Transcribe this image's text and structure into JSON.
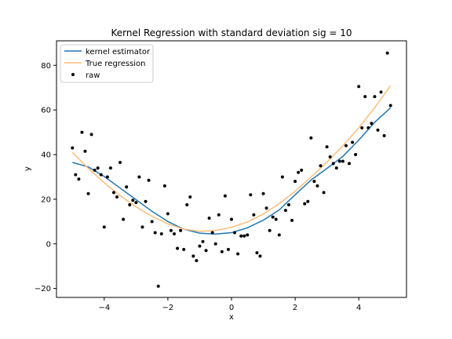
{
  "chart_data": {
    "type": "scatter",
    "title": "Kernel Regression with standard deviation sig = 10",
    "xlabel": "x",
    "ylabel": "y",
    "xlim": [
      -5.5,
      5.5
    ],
    "ylim": [
      -24,
      91
    ],
    "xticks": [
      -4,
      -2,
      0,
      2,
      4
    ],
    "yticks": [
      -20,
      0,
      20,
      40,
      60,
      80
    ],
    "grid": false,
    "legend_position": "top-left",
    "series": [
      {
        "name": "kernel estimator",
        "kind": "line",
        "color": "#1f77b4",
        "x": [
          -5.0,
          -4.5,
          -4.0,
          -3.5,
          -3.0,
          -2.5,
          -2.0,
          -1.5,
          -1.0,
          -0.5,
          0.0,
          0.5,
          1.0,
          1.5,
          2.0,
          2.5,
          3.0,
          3.5,
          4.0,
          4.5,
          5.0
        ],
        "y": [
          36.5,
          34.5,
          30.2,
          25.0,
          19.8,
          14.6,
          10.0,
          6.6,
          4.8,
          4.4,
          5.0,
          7.2,
          10.6,
          15.2,
          22.0,
          28.6,
          33.8,
          39.2,
          46.5,
          54.5,
          61.0
        ]
      },
      {
        "name": "True regression",
        "kind": "line",
        "color": "#ffbb78",
        "x": [
          -5.0,
          -4.5,
          -4.0,
          -3.5,
          -3.0,
          -2.5,
          -2.0,
          -1.5,
          -1.0,
          -0.5,
          0.0,
          0.5,
          1.0,
          1.5,
          2.0,
          2.5,
          3.0,
          3.5,
          4.0,
          4.5,
          5.0
        ],
        "y": [
          41.0,
          33.8,
          27.4,
          21.6,
          16.6,
          12.4,
          9.0,
          6.6,
          5.6,
          6.0,
          7.4,
          9.8,
          13.4,
          18.0,
          23.6,
          30.0,
          36.6,
          44.0,
          52.0,
          61.0,
          71.0
        ]
      },
      {
        "name": "raw",
        "kind": "scatter",
        "color": "#000000",
        "x": [
          -5.0,
          -4.9,
          -4.8,
          -4.7,
          -4.6,
          -4.5,
          -4.4,
          -4.3,
          -4.2,
          -4.1,
          -4.0,
          -3.9,
          -3.8,
          -3.7,
          -3.6,
          -3.5,
          -3.4,
          -3.3,
          -3.2,
          -3.1,
          -3.0,
          -2.9,
          -2.8,
          -2.7,
          -2.6,
          -2.5,
          -2.4,
          -2.3,
          -2.2,
          -2.1,
          -2.0,
          -1.9,
          -1.8,
          -1.7,
          -1.6,
          -1.5,
          -1.4,
          -1.3,
          -1.2,
          -1.1,
          -1.0,
          -0.9,
          -0.8,
          -0.7,
          -0.6,
          -0.5,
          -0.4,
          -0.3,
          -0.2,
          -0.1,
          0.0,
          0.1,
          0.2,
          0.3,
          0.4,
          0.5,
          0.6,
          0.7,
          0.8,
          0.9,
          1.0,
          1.1,
          1.2,
          1.3,
          1.4,
          1.5,
          1.6,
          1.7,
          1.8,
          1.9,
          2.0,
          2.1,
          2.2,
          2.3,
          2.4,
          2.5,
          2.6,
          2.7,
          2.8,
          2.9,
          3.0,
          3.1,
          3.2,
          3.3,
          3.4,
          3.5,
          3.6,
          3.7,
          3.8,
          3.9,
          4.0,
          4.1,
          4.2,
          4.3,
          4.4,
          4.5,
          4.6,
          4.7,
          4.8,
          4.9,
          5.0
        ],
        "y": [
          43.0,
          31.0,
          29.0,
          50.0,
          41.5,
          22.5,
          49.0,
          33.0,
          34.0,
          31.0,
          7.5,
          30.0,
          34.0,
          23.0,
          21.0,
          36.5,
          11.0,
          25.5,
          17.5,
          19.5,
          18.5,
          30.0,
          7.5,
          19.0,
          28.5,
          10.0,
          5.0,
          -19.0,
          4.5,
          26.0,
          13.5,
          6.0,
          4.5,
          -2.0,
          6.0,
          -2.5,
          17.5,
          21.0,
          -5.5,
          -7.5,
          -1.0,
          1.0,
          -3.0,
          11.5,
          5.0,
          0.0,
          13.0,
          -3.5,
          21.5,
          -2.5,
          11.0,
          5.0,
          -4.5,
          3.5,
          3.5,
          4.0,
          22.0,
          13.0,
          -4.0,
          -5.5,
          22.5,
          16.0,
          6.0,
          12.0,
          11.0,
          4.0,
          30.0,
          15.0,
          17.5,
          10.5,
          28.0,
          32.0,
          33.0,
          18.0,
          19.0,
          47.5,
          28.0,
          26.0,
          35.0,
          23.0,
          43.5,
          39.0,
          36.0,
          34.0,
          37.0,
          37.0,
          44.0,
          36.0,
          45.5,
          40.0,
          70.5,
          52.0,
          66.0,
          52.0,
          54.0,
          66.0,
          51.0,
          68.0,
          48.5,
          85.5,
          62.0
        ]
      }
    ]
  }
}
